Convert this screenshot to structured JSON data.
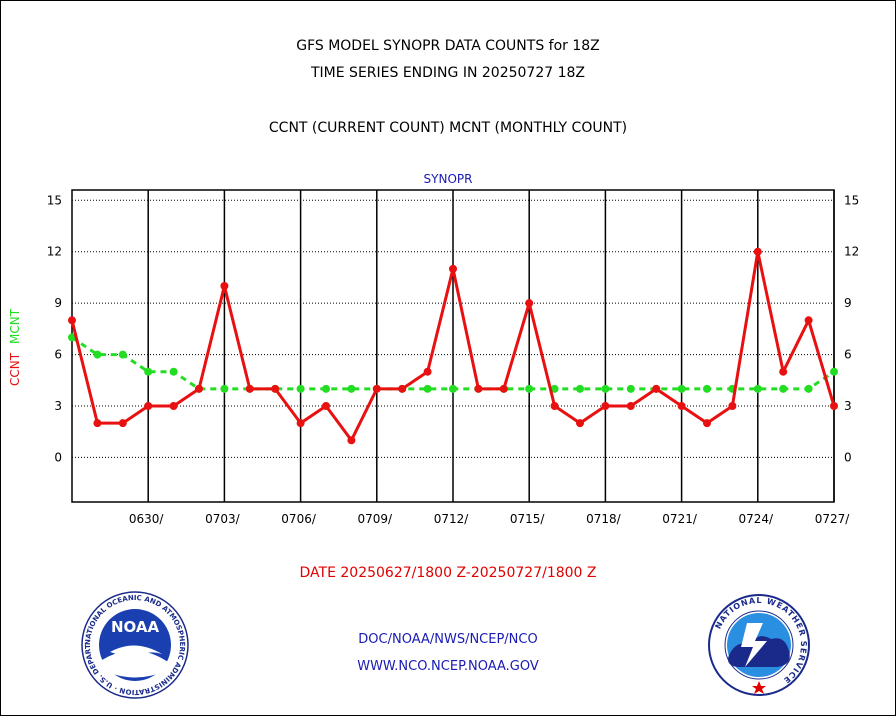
{
  "header": {
    "title_line1": "GFS MODEL SYNOPR DATA COUNTS for 18Z",
    "title_line2": "TIME SERIES ENDING IN 20250727 18Z",
    "subtitle": "CCNT (CURRENT COUNT) MCNT (MONTHLY COUNT)"
  },
  "footer": {
    "date_range": "DATE 20250627/1800 Z-20250727/1800 Z",
    "org_path": "DOC/NOAA/NWS/NCEP/NCO",
    "website": "WWW.NCO.NCEP.NOAA.GOV"
  },
  "logos": {
    "noaa_text": "NOAA",
    "noaa_ring_text": "NATIONAL OCEANIC AND ATMOSPHERIC ADMINISTRATION · U.S. DEPARTMENT OF COMMERCE ·",
    "nws_ring_text": "NATIONAL WEATHER SERVICE"
  },
  "colors": {
    "ccnt": "#e81010",
    "mcnt": "#22dd22",
    "axis": "#000000",
    "label_blue": "#1a1ab4",
    "date_red": "#e00000"
  },
  "chart_data": {
    "type": "line",
    "title": "SYNOPR",
    "ylabel_ccnt": "CCNT",
    "ylabel_mcnt": "MCNT",
    "xlabel": "",
    "ylim": [
      -2.6,
      15.6
    ],
    "yticks": [
      15,
      12,
      9,
      6,
      3,
      0
    ],
    "x": [
      "0627",
      "0628",
      "0629",
      "0630",
      "0701",
      "0702",
      "0703",
      "0704",
      "0705",
      "0706",
      "0707",
      "0708",
      "0709",
      "0710",
      "0711",
      "0712",
      "0713",
      "0714",
      "0715",
      "0716",
      "0717",
      "0718",
      "0719",
      "0720",
      "0721",
      "0722",
      "0723",
      "0724",
      "0725",
      "0726",
      "0727"
    ],
    "xtick_labels": [
      "0630/",
      "0703/",
      "0706/",
      "0709/",
      "0712/",
      "0715/",
      "0718/",
      "0721/",
      "0724/",
      "0727/"
    ],
    "grid": true,
    "legend": "none (series named by left axis labels)",
    "series": [
      {
        "name": "CCNT",
        "values": [
          8,
          2,
          2,
          3,
          3,
          4,
          10,
          4,
          4,
          2,
          3,
          1,
          4,
          4,
          5,
          11,
          4,
          4,
          9,
          3,
          2,
          3,
          3,
          4,
          3,
          2,
          3,
          12,
          5,
          8,
          3
        ]
      },
      {
        "name": "MCNT",
        "values": [
          7,
          6,
          6,
          5,
          5,
          4,
          4,
          4,
          4,
          4,
          4,
          4,
          4,
          4,
          4,
          4,
          4,
          4,
          4,
          4,
          4,
          4,
          4,
          4,
          4,
          4,
          4,
          4,
          4,
          4,
          5
        ]
      }
    ]
  }
}
